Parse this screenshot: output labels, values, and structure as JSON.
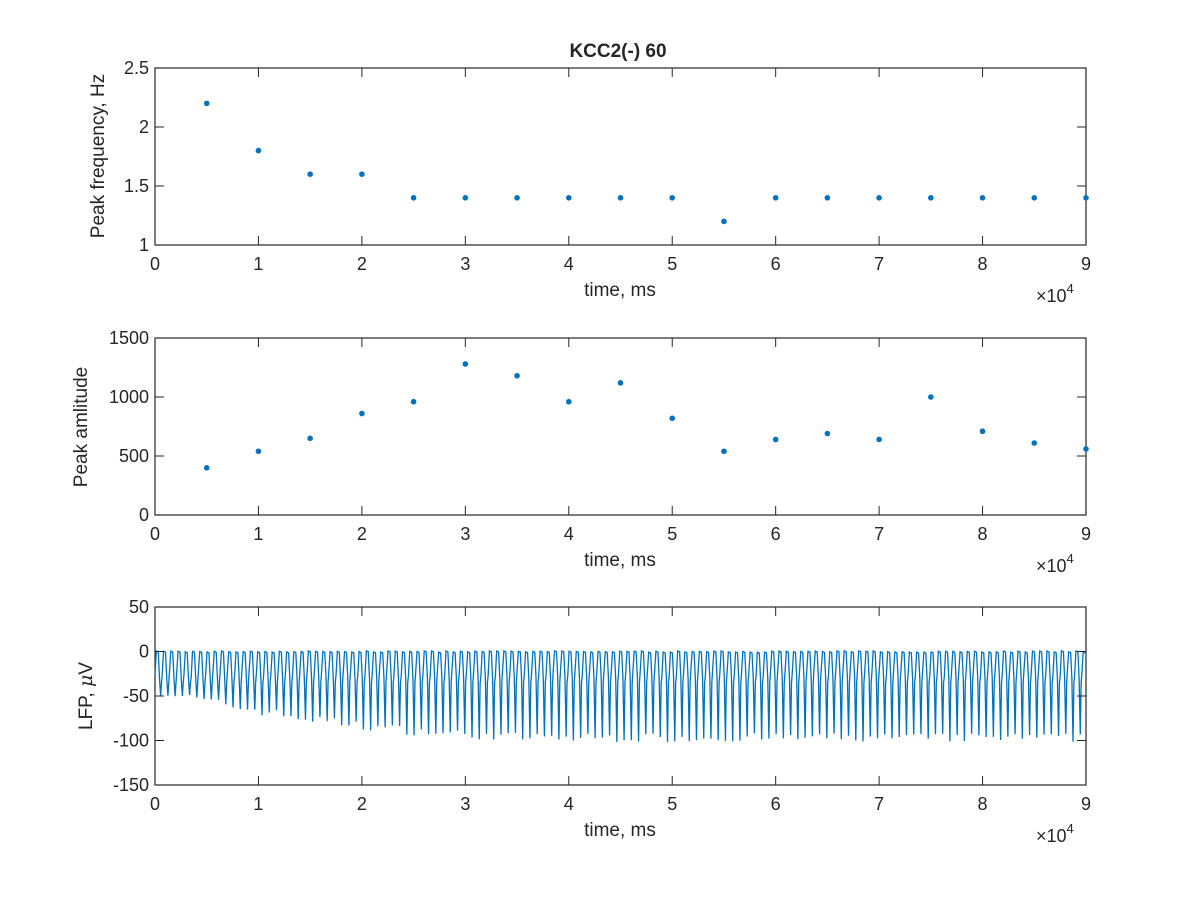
{
  "figure": {
    "title": "KCC2(-) 60"
  },
  "colors": {
    "series": "#0072BD",
    "axes": "#262626",
    "background": "#ffffff"
  },
  "chart_data": [
    {
      "type": "scatter",
      "title": "KCC2(-) 60",
      "xlabel": "time, ms",
      "ylabel": "Peak frequency, Hz",
      "x_exponent_label": "×10",
      "x_exponent": "4",
      "xlim": [
        0,
        90000
      ],
      "ylim": [
        1,
        2.5
      ],
      "xticks": [
        0,
        10000,
        20000,
        30000,
        40000,
        50000,
        60000,
        70000,
        80000,
        90000
      ],
      "xtick_labels": [
        "0",
        "1",
        "2",
        "3",
        "4",
        "5",
        "6",
        "7",
        "8",
        "9"
      ],
      "yticks": [
        1,
        1.5,
        2,
        2.5
      ],
      "ytick_labels": [
        "1",
        "1.5",
        "2",
        "2.5"
      ],
      "grid": false,
      "series": [
        {
          "x": [
            5000,
            10000,
            15000,
            20000,
            25000,
            30000,
            35000,
            40000,
            45000,
            50000,
            55000,
            60000,
            65000,
            70000,
            75000,
            80000,
            85000,
            90000
          ],
          "y": [
            2.2,
            1.8,
            1.6,
            1.6,
            1.4,
            1.4,
            1.4,
            1.4,
            1.4,
            1.4,
            1.2,
            1.4,
            1.4,
            1.4,
            1.4,
            1.4,
            1.4,
            1.4
          ]
        }
      ]
    },
    {
      "type": "scatter",
      "title": "",
      "xlabel": "time, ms",
      "ylabel": "Peak amlitude",
      "x_exponent_label": "×10",
      "x_exponent": "4",
      "xlim": [
        0,
        90000
      ],
      "ylim": [
        0,
        1500
      ],
      "xticks": [
        0,
        10000,
        20000,
        30000,
        40000,
        50000,
        60000,
        70000,
        80000,
        90000
      ],
      "xtick_labels": [
        "0",
        "1",
        "2",
        "3",
        "4",
        "5",
        "6",
        "7",
        "8",
        "9"
      ],
      "yticks": [
        0,
        500,
        1000,
        1500
      ],
      "ytick_labels": [
        "0",
        "500",
        "1000",
        "1500"
      ],
      "grid": false,
      "series": [
        {
          "x": [
            5000,
            10000,
            15000,
            20000,
            25000,
            30000,
            35000,
            40000,
            45000,
            50000,
            55000,
            60000,
            65000,
            70000,
            75000,
            80000,
            85000,
            90000
          ],
          "y": [
            400,
            540,
            650,
            860,
            960,
            1280,
            1180,
            960,
            1120,
            820,
            540,
            640,
            690,
            640,
            1000,
            710,
            610,
            560
          ]
        }
      ]
    },
    {
      "type": "line",
      "title": "",
      "xlabel": "time, ms",
      "ylabel_prefix": "LFP, ",
      "ylabel_symbol": "μ",
      "ylabel_suffix": "V",
      "x_exponent_label": "×10",
      "x_exponent": "4",
      "xlim": [
        0,
        90000
      ],
      "ylim": [
        -150,
        50
      ],
      "xticks": [
        0,
        10000,
        20000,
        30000,
        40000,
        50000,
        60000,
        70000,
        80000,
        90000
      ],
      "xtick_labels": [
        "0",
        "1",
        "2",
        "3",
        "4",
        "5",
        "6",
        "7",
        "8",
        "9"
      ],
      "yticks": [
        -150,
        -100,
        -50,
        0,
        50
      ],
      "ytick_labels": [
        "-150",
        "-100",
        "-50",
        "0",
        "50"
      ],
      "grid": false,
      "signal": {
        "description_of_waveform": "periodic spiking oscillation",
        "t_start": 0,
        "t_end": 90000,
        "upper_level": 0,
        "baseline_level": -25,
        "trough_start": -45,
        "trough_late": -97,
        "trough_rise_end": 40000,
        "spike_period": 700
      }
    }
  ]
}
